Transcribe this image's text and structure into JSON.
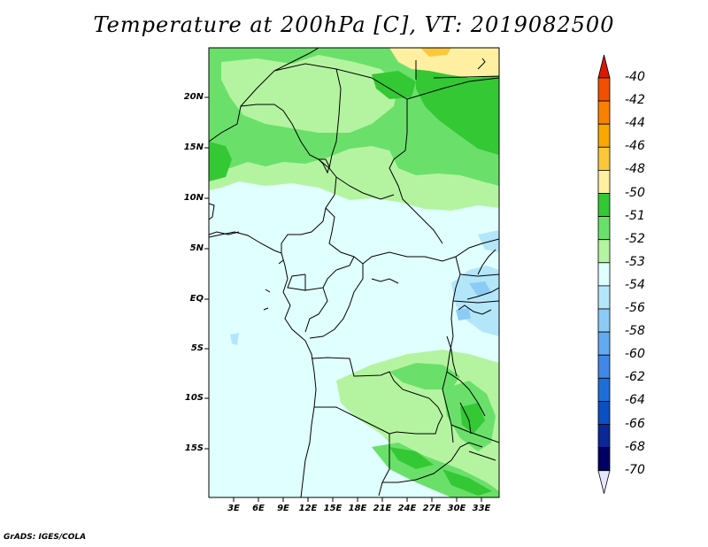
{
  "title": "Temperature at 200hPa [C], VT: 2019082500",
  "footer": "GrADS: IGES/COLA",
  "map": {
    "lat_labels": [
      "20N",
      "15N",
      "10N",
      "5N",
      "EQ",
      "5S",
      "10S",
      "15S"
    ],
    "lon_labels": [
      "3E",
      "6E",
      "9E",
      "12E",
      "15E",
      "18E",
      "21E",
      "24E",
      "27E",
      "30E",
      "33E"
    ]
  },
  "colorbar": {
    "labels": [
      "-40",
      "-42",
      "-44",
      "-46",
      "-48",
      "-50",
      "-51",
      "-52",
      "-53",
      "-54",
      "-56",
      "-58",
      "-60",
      "-62",
      "-64",
      "-66",
      "-68",
      "-70"
    ],
    "colors": [
      "#ffffff",
      "#d71a00",
      "#f05000",
      "#f88200",
      "#f8a800",
      "#fac83a",
      "#fef0a0",
      "#34c834",
      "#6ae06a",
      "#b4f4a0",
      "#e0ffff",
      "#b4e6fa",
      "#8ccbf5",
      "#64aaf0",
      "#4188e6",
      "#1e6ed7",
      "#0a50c3",
      "#0a2896",
      "#000064",
      "#e6e6ff"
    ],
    "extend": "both"
  },
  "legend_colors": {
    "green_dark": "#34c834",
    "green_mid": "#6ae06a",
    "green_light": "#b4f4a0",
    "cyan_pale": "#e0ffff",
    "blue_light": "#b4e6fa",
    "blue_mid": "#8ccbf5",
    "yellow_pale": "#fef0a0",
    "yellow": "#fac83a"
  }
}
